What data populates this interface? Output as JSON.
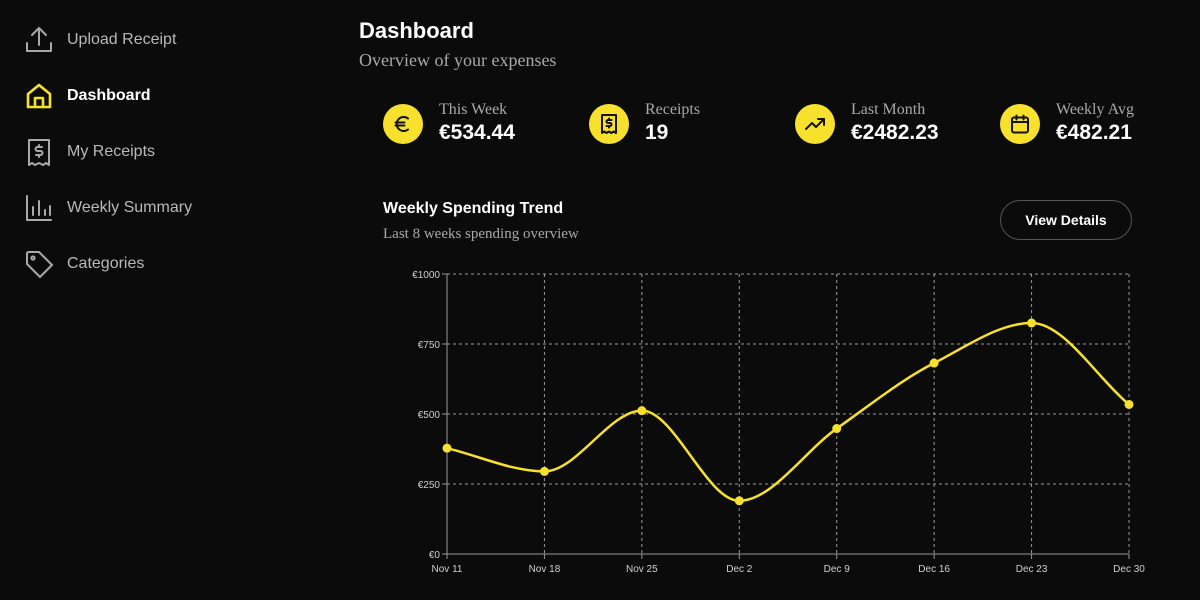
{
  "sidebar": {
    "items": [
      {
        "label": "Upload Receipt",
        "icon": "upload-icon",
        "active": false
      },
      {
        "label": "Dashboard",
        "icon": "home-icon",
        "active": true
      },
      {
        "label": "My Receipts",
        "icon": "receipt-icon",
        "active": false
      },
      {
        "label": "Weekly Summary",
        "icon": "bar-chart-icon",
        "active": false
      },
      {
        "label": "Categories",
        "icon": "tag-icon",
        "active": false
      }
    ]
  },
  "header": {
    "title": "Dashboard",
    "subtitle": "Overview of your expenses"
  },
  "stats": [
    {
      "label": "This Week",
      "value": "€534.44",
      "icon": "euro-icon"
    },
    {
      "label": "Receipts",
      "value": "19",
      "icon": "receipt-icon"
    },
    {
      "label": "Last Month",
      "value": "€2482.23",
      "icon": "trending-up-icon"
    },
    {
      "label": "Weekly Avg",
      "value": "€482.21",
      "icon": "calendar-icon"
    }
  ],
  "chart_card": {
    "title": "Weekly Spending Trend",
    "subtitle": "Last 8 weeks spending overview",
    "button_label": "View Details"
  },
  "colors": {
    "accent": "#f7e12c",
    "background": "#0b0b0b"
  },
  "chart_data": {
    "type": "line",
    "categories": [
      "Nov 11",
      "Nov 18",
      "Nov 25",
      "Dec 2",
      "Dec 9",
      "Dec 16",
      "Dec 23",
      "Dec 30"
    ],
    "series": [
      {
        "values": [
          378,
          295,
          512,
          190,
          448,
          682,
          825,
          534
        ]
      }
    ],
    "yticks": [
      "€0",
      "€250",
      "€500",
      "€750",
      "€1000"
    ],
    "ylim": [
      0,
      1000
    ],
    "grid": true,
    "title": "",
    "xlabel": "",
    "ylabel": ""
  }
}
